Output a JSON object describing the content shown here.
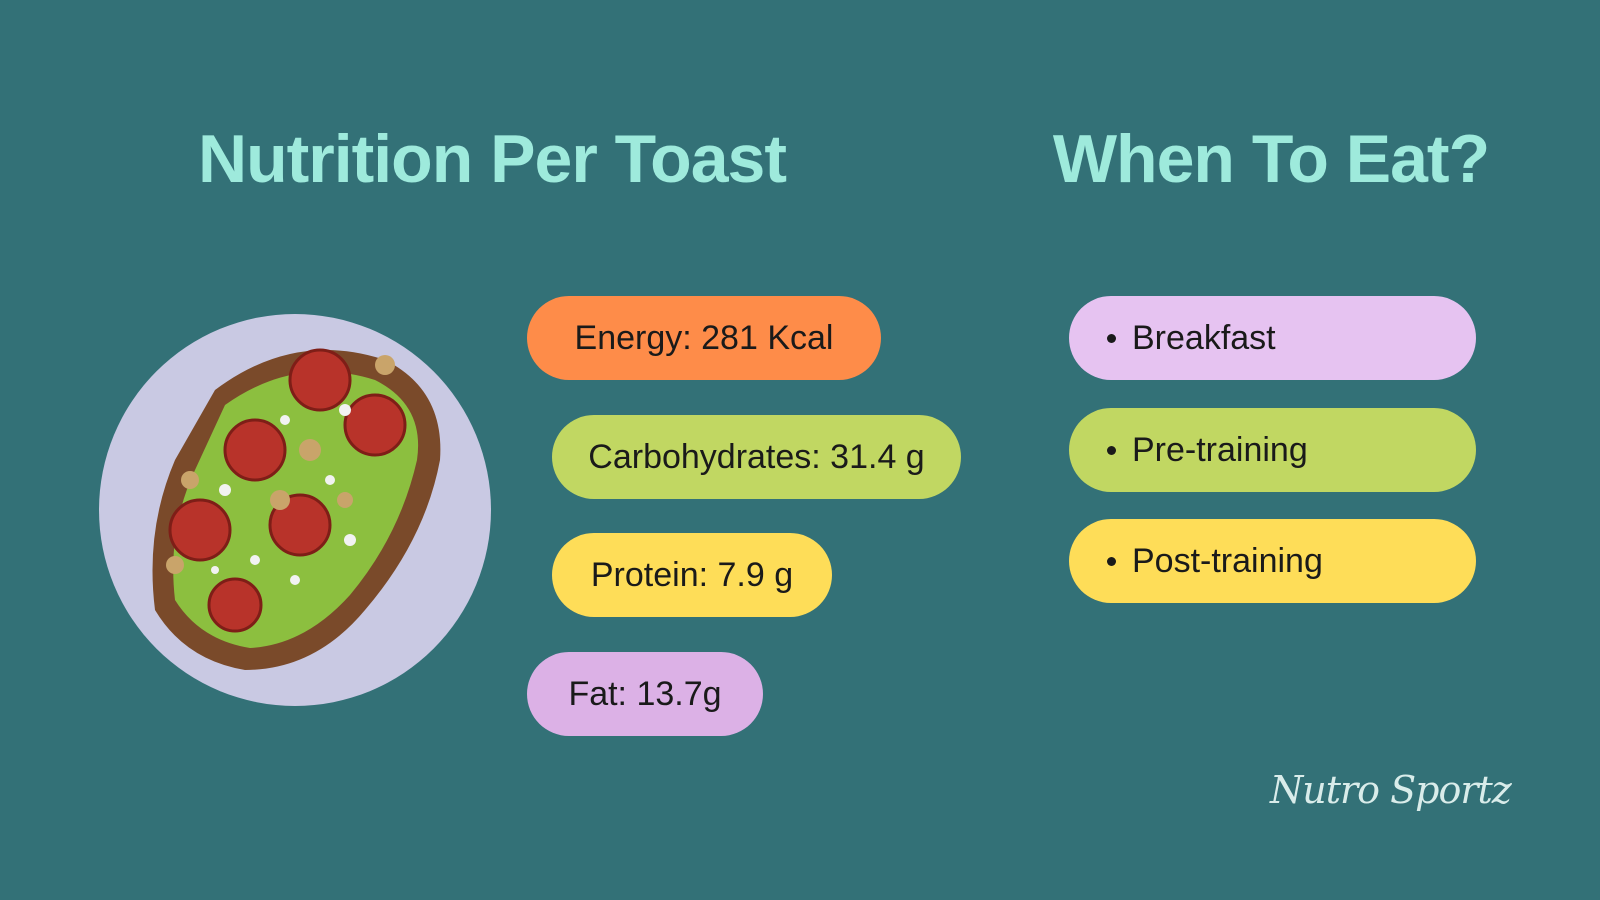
{
  "header": {
    "nutrition_title": "Nutrition Per Toast",
    "when_title": "When To Eat?"
  },
  "nutrition": [
    "Energy: 281 Kcal",
    "Carbohydrates: 31.4 g",
    "Protein: 7.9 g",
    "Fat: 13.7g"
  ],
  "when_to_eat": [
    "Breakfast",
    "Pre-training",
    "Post-training"
  ],
  "brand": "Nutro Sportz"
}
